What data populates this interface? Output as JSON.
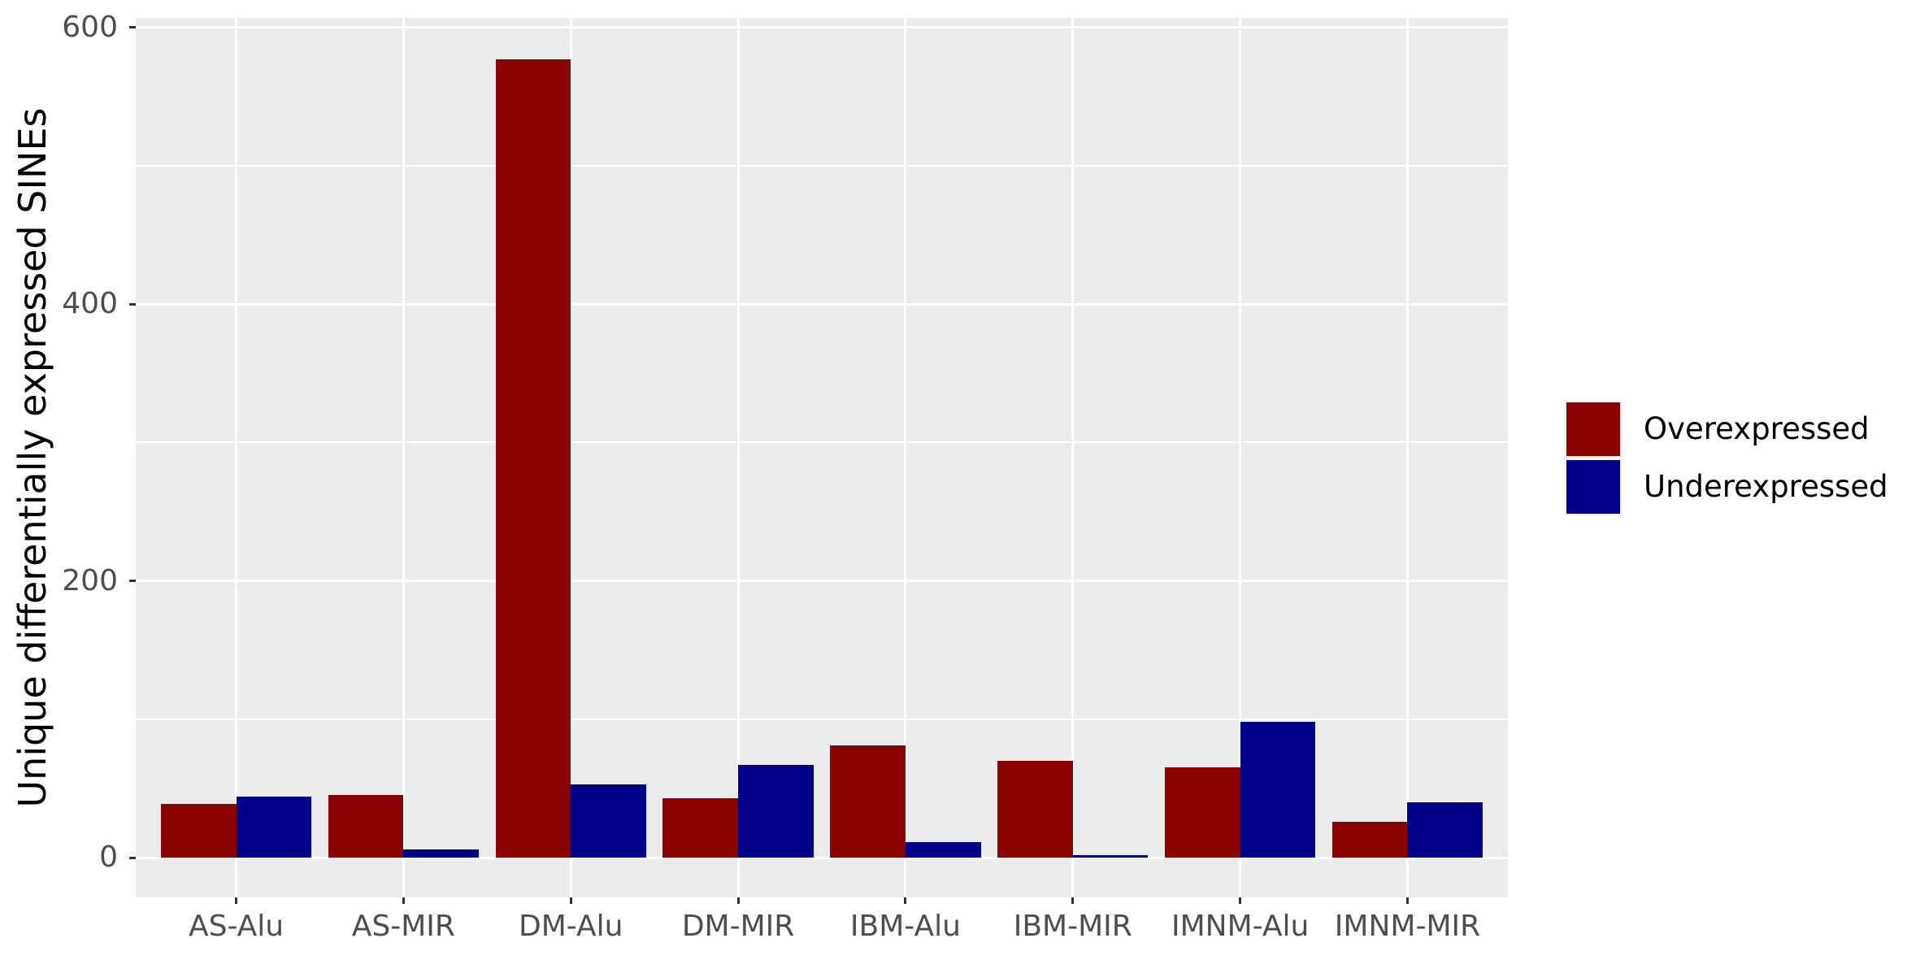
{
  "figure": {
    "background_color": "#ffffff",
    "panel_color": "#EBEBEB",
    "gridline_color": "#ffffff",
    "tick_mark_color": "#333333",
    "tick_label_color": "#4D4D4D"
  },
  "y_axis": {
    "title": "Unique differentially expressed SINEs",
    "major_ticks": [
      0,
      200,
      400,
      600
    ],
    "minor_ticks": [
      100,
      300,
      500
    ]
  },
  "legend": {
    "entries": [
      {
        "label": "Overexpressed",
        "color": "#8B0000"
      },
      {
        "label": "Underexpressed",
        "color": "#00008B"
      }
    ]
  },
  "chart_data": {
    "type": "bar",
    "subtype": "dodged",
    "title": "",
    "xlabel": "",
    "ylabel": "Unique differentially expressed SINEs",
    "categories": [
      "AS-Alu",
      "AS-MIR",
      "DM-Alu",
      "DM-MIR",
      "IBM-Alu",
      "IBM-MIR",
      "IMNM-Alu",
      "IMNM-MIR"
    ],
    "series": [
      {
        "name": "Overexpressed",
        "color": "#8B0000",
        "values": [
          39,
          45,
          577,
          43,
          81,
          70,
          65,
          26
        ]
      },
      {
        "name": "Underexpressed",
        "color": "#00008B",
        "values": [
          44,
          6,
          53,
          67,
          11,
          2,
          98,
          40
        ]
      }
    ],
    "ylim": [
      0,
      610
    ],
    "yticks": [
      0,
      200,
      400,
      600
    ],
    "grid": "on",
    "legend_position": "right"
  }
}
